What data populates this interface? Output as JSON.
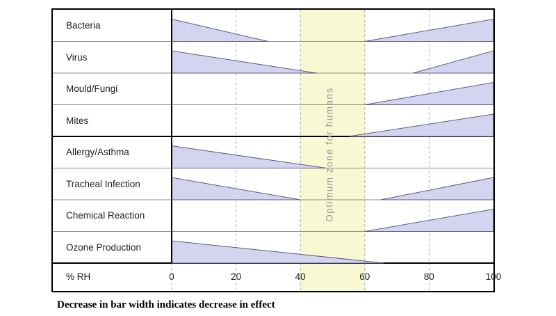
{
  "caption": "Decrease in bar width indicates decrease in effect",
  "chart_data": {
    "type": "bar",
    "subtype": "tapered-wedge-rows",
    "title": "",
    "xlabel": "% RH",
    "xlim": [
      0,
      100
    ],
    "x_ticks": [
      0,
      20,
      40,
      60,
      80,
      100
    ],
    "grid": "dashed-vertical",
    "optimum_zone": {
      "from": 40,
      "to": 60,
      "label": "Optimum zone for humans"
    },
    "group_separator_after_row": 4,
    "rows": [
      {
        "label": "Bacteria",
        "wedges": [
          {
            "from": 0,
            "to": 30,
            "wide_end": "left"
          },
          {
            "from": 60,
            "to": 100,
            "wide_end": "right"
          }
        ]
      },
      {
        "label": "Virus",
        "wedges": [
          {
            "from": 0,
            "to": 45,
            "wide_end": "left"
          },
          {
            "from": 75,
            "to": 100,
            "wide_end": "right"
          }
        ]
      },
      {
        "label": "Mould/Fungi",
        "wedges": [
          {
            "from": 60,
            "to": 100,
            "wide_end": "right"
          }
        ]
      },
      {
        "label": "Mites",
        "wedges": [
          {
            "from": 55,
            "to": 100,
            "wide_end": "right"
          }
        ]
      },
      {
        "label": "Allergy/Asthma",
        "wedges": [
          {
            "from": 0,
            "to": 48,
            "wide_end": "left"
          }
        ]
      },
      {
        "label": "Tracheal Infection",
        "wedges": [
          {
            "from": 0,
            "to": 40,
            "wide_end": "left"
          },
          {
            "from": 65,
            "to": 100,
            "wide_end": "right"
          }
        ]
      },
      {
        "label": "Chemical Reaction",
        "wedges": [
          {
            "from": 60,
            "to": 100,
            "wide_end": "right"
          }
        ]
      },
      {
        "label": "Ozone Production",
        "wedges": [
          {
            "from": 0,
            "to": 66,
            "wide_end": "left"
          }
        ]
      }
    ],
    "colors": {
      "wedge_fill": "#d3d5f0",
      "wedge_stroke": "#5a5a80",
      "optimum_zone_fill": "#f8f8d2",
      "optimum_label": "#9a9a9a",
      "border": "#000000",
      "separator": "#8c8c8c",
      "gridline": "#b0b0b0"
    }
  }
}
